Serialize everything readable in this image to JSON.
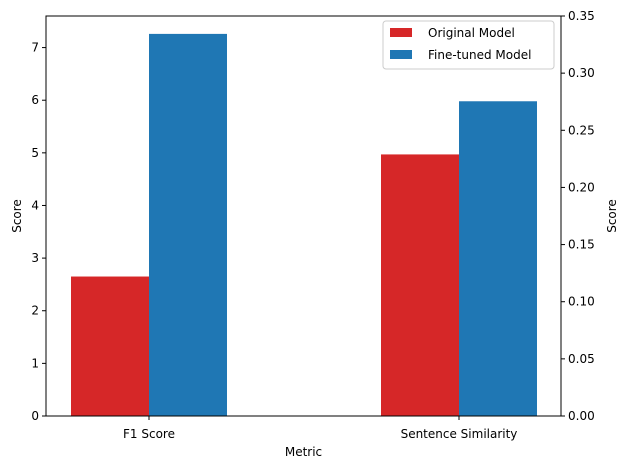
{
  "chart_data": {
    "type": "bar",
    "xlabel": "Metric",
    "ylabel_left": "Score",
    "ylabel_right": "Score",
    "categories": [
      "F1 Score",
      "Sentence Similarity"
    ],
    "series": [
      {
        "name": "Original Model",
        "color": "#d62728",
        "values": [
          2.65,
          4.97
        ]
      },
      {
        "name": "Fine-tuned Model",
        "color": "#1f77b4",
        "values": [
          7.26,
          5.98
        ]
      }
    ],
    "ylim_left": [
      0,
      7.6
    ],
    "yticks_left": [
      0,
      1,
      2,
      3,
      4,
      5,
      6,
      7
    ],
    "ylim_right": [
      0,
      0.35
    ],
    "yticks_right": [
      "0.00",
      "0.05",
      "0.10",
      "0.15",
      "0.20",
      "0.25",
      "0.30",
      "0.35"
    ],
    "legend_position": "upper right",
    "grid": false
  }
}
